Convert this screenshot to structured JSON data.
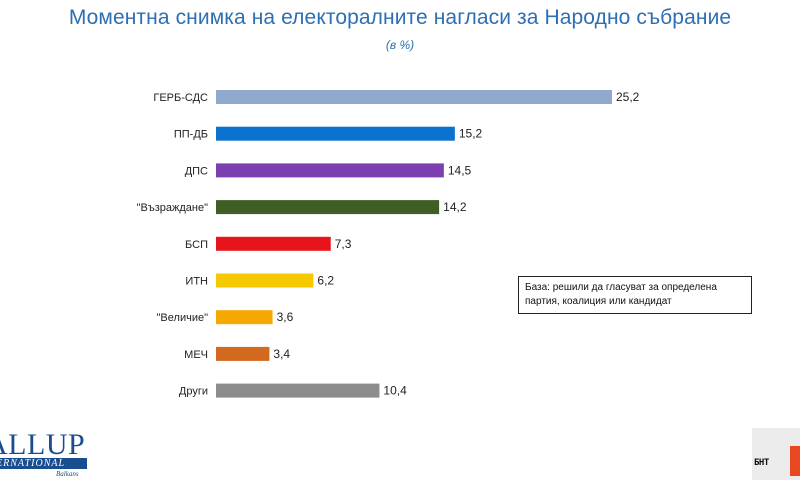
{
  "header": {
    "title": "Моментна снимка на електоралните нагласи за Народно събрание",
    "subtitle": "(в %)"
  },
  "chart_data": {
    "type": "bar",
    "orientation": "horizontal",
    "categories": [
      "ГЕРБ-СДС",
      "ПП-ДБ",
      "ДПС",
      "\"Възраждане\"",
      "БСП",
      "ИТН",
      "\"Величие\"",
      "МЕЧ",
      "Други"
    ],
    "values": [
      25.2,
      15.2,
      14.5,
      14.2,
      7.3,
      6.2,
      3.6,
      3.4,
      10.4
    ],
    "value_labels": [
      "25,2",
      "15,2",
      "14,5",
      "14,2",
      "7,3",
      "6,2",
      "3,6",
      "3,4",
      "10,4"
    ],
    "colors": [
      "#8ea9cc",
      "#0b72cf",
      "#7b3fb0",
      "#3f5e26",
      "#e8141b",
      "#f5c800",
      "#f5a800",
      "#d2691e",
      "#8c8c8c"
    ],
    "title": "Моментна снимка на електоралните нагласи за Народно събрание",
    "subtitle": "(в %)",
    "xlim": [
      0,
      25.2
    ],
    "grid": false,
    "legend": false
  },
  "note": {
    "line1": "База: решили да гласуват за определена",
    "line2": "партия, коалиция или кандидат"
  },
  "logos": {
    "left_line1": "ALLUP",
    "left_line2": "ERNATIONAL",
    "left_line3": "Balkans",
    "right_text": "БНТ"
  }
}
